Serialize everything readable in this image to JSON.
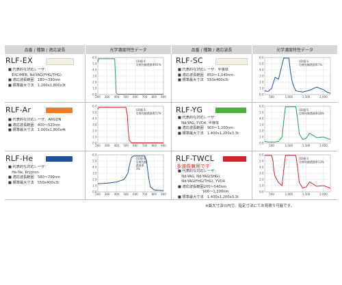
{
  "headers": {
    "left": "品番 / 種類 / 適応波長",
    "chart": "光学濃度特性データ",
    "right": "品番 / 種類 / 適応波長",
    "chart2": "光学濃度特性データ"
  },
  "products": [
    {
      "name": "RLF-EX",
      "swatch_color": "#f2f0e2",
      "lines": [
        "■ 代表的な対応レーザ：",
        "　EXCIMER, Nd-YAG(FHG/THG)",
        "■ 適応波長範囲　180〜390nm",
        "■ 標準最大寸法　1,200x1,800x3t"
      ]
    },
    {
      "name": "RLF-SC",
      "swatch_color": "#f2f0e2",
      "lines": [
        "■ 代表的な対応レーザ：半導体",
        "■ 適応波長範囲　850〜1,040nm",
        "■ 標準最大寸法　550x400x3t"
      ]
    },
    {
      "name": "RLF-Ar",
      "swatch_color": "#f07c1e",
      "lines": [
        "■ 代表的な対応レーザ：ARGON",
        "■ 適応波長範囲　400〜520nm",
        "■ 標準最大寸法　1,000x1,800x4t"
      ]
    },
    {
      "name": "RLF-YG",
      "swatch_color": "#4caf3c",
      "lines": [
        "■ 代表的な対応レーザ：",
        "　Nd-YAG, YVO4, 半導体",
        "■ 適応波長範囲　900〜1,200nm",
        "■ 標準最大寸法　1,400x1,200x3.3t"
      ]
    },
    {
      "name": "RLF-He",
      "swatch_color": "#1f4e9c",
      "lines": [
        "■ 代表的な対応レーザ：",
        "　He-Ne, Krypton",
        "■ 適応波長範囲　580〜700nm",
        "■ 標準最大寸法　550x400x3t"
      ]
    },
    {
      "name": "RLF-TWCL",
      "swatch_color": "#d6202a",
      "subtitle": "多波長兼用です",
      "lines": [
        "■ 代表的な対応レーザ：",
        "　Nd-YAG, Nd-YAG(SHG),",
        "　Nd-YAG(FHG/THG), YVO4",
        "■ 適応波長範囲200〜540nm",
        "　　　　　　　900〜1,200nm",
        "■ 標準最大寸法　1,400x1,200x3.3t"
      ]
    }
  ],
  "chart_data": [
    {
      "type": "line",
      "product": "RLF-EX",
      "color": "#1e9c5a",
      "xlim": [
        200,
        900
      ],
      "ylim": [
        0,
        6
      ],
      "xticks": [
        "200",
        "300",
        "400",
        "500",
        "600",
        "700",
        "800",
        "900"
      ],
      "yticks": [
        "0.0",
        "1.0",
        "2.0",
        "3.0",
        "4.0",
        "5.0",
        "6.0"
      ],
      "annotation": [
        "OD値 6",
        "可視光線透過率91%"
      ],
      "x": [
        200,
        210,
        380,
        388,
        395,
        410,
        900
      ],
      "y": [
        5.2,
        5.8,
        5.8,
        3.0,
        0.3,
        0.05,
        0.05
      ]
    },
    {
      "type": "line",
      "product": "RLF-SC",
      "color": "#1f4e9c",
      "xlim": [
        300,
        2200
      ],
      "ylim": [
        0,
        6
      ],
      "xticks": [
        "500",
        "1,000",
        "1,500",
        "2,000"
      ],
      "yticks": [
        "0.0",
        "1.0",
        "2.0",
        "3.0",
        "4.0",
        "5.0",
        "6.0"
      ],
      "annotation": [
        "OD値 6",
        "可視光線透過率7%"
      ],
      "x": [
        300,
        400,
        500,
        600,
        700,
        800,
        850,
        900,
        950,
        1000,
        1050,
        1100,
        1150,
        1200,
        1400,
        1600,
        1800,
        1900,
        2000,
        2100,
        2200
      ],
      "y": [
        0.6,
        0.5,
        1.0,
        2.8,
        2.5,
        4.8,
        5.9,
        5.9,
        5.9,
        5.9,
        3.5,
        2.0,
        1.2,
        0.6,
        0.4,
        0.7,
        1.2,
        1.0,
        0.8,
        0.4,
        0.2
      ]
    },
    {
      "type": "line",
      "product": "RLF-Ar",
      "color": "#d6202a",
      "xlim": [
        200,
        900
      ],
      "ylim": [
        0,
        6
      ],
      "xticks": [
        "200",
        "300",
        "400",
        "500",
        "600",
        "700",
        "800",
        "900"
      ],
      "yticks": [
        "0.0",
        "1.0",
        "2.0",
        "3.0",
        "4.0",
        "5.0",
        "6.0"
      ],
      "annotation": [
        "OD値 6",
        "可視光線透過率57%"
      ],
      "x": [
        200,
        210,
        500,
        515,
        525,
        535,
        560,
        900
      ],
      "y": [
        5.5,
        5.8,
        5.8,
        4.5,
        2.0,
        0.5,
        0.05,
        0.05
      ]
    },
    {
      "type": "line",
      "product": "RLF-YG",
      "color": "#1e9c5a",
      "xlim": [
        300,
        2200
      ],
      "ylim": [
        0,
        6
      ],
      "xticks": [
        "500",
        "1,000",
        "1,500",
        "2,000"
      ],
      "yticks": [
        "0.0",
        "1.0",
        "2.0",
        "3.0",
        "4.0",
        "5.0",
        "6.0"
      ],
      "annotation": [
        "OD値 6",
        "可視光線透過率38%"
      ],
      "x": [
        300,
        400,
        500,
        600,
        700,
        800,
        850,
        900,
        950,
        1000,
        1100,
        1200,
        1250,
        1300,
        1400,
        1500,
        1600,
        1800,
        2000,
        2100,
        2200
      ],
      "y": [
        0.3,
        0.2,
        0.2,
        0.2,
        0.3,
        1.0,
        3.5,
        5.9,
        5.9,
        5.9,
        5.9,
        5.9,
        4.0,
        1.5,
        0.6,
        0.8,
        1.6,
        0.9,
        1.0,
        0.8,
        0.6
      ]
    },
    {
      "type": "line",
      "product": "RLF-He",
      "color": "#1f4e9c",
      "xlim": [
        200,
        900
      ],
      "ylim": [
        0,
        6
      ],
      "xticks": [
        "200",
        "300",
        "400",
        "500",
        "600",
        "700",
        "800",
        "900"
      ],
      "yticks": [
        "0.0",
        "1.0",
        "2.0",
        "3.0",
        "4.0",
        "5.0",
        "6.0"
      ],
      "annotation": [
        "OD値 6",
        "可視光線",
        "透過率",
        "3%"
      ],
      "x": [
        200,
        300,
        400,
        480,
        520,
        540,
        560,
        580,
        700,
        720,
        740,
        760,
        800,
        900
      ],
      "y": [
        1.3,
        1.4,
        1.6,
        2.0,
        3.0,
        4.5,
        5.6,
        5.8,
        5.8,
        5.0,
        2.5,
        0.8,
        0.3,
        0.2
      ]
    },
    {
      "type": "line",
      "product": "RLF-TWCL",
      "color": "#d6202a",
      "xlim": [
        300,
        2200
      ],
      "ylim": [
        0,
        6
      ],
      "xticks": [
        "500",
        "1,000",
        "1,500",
        "2,000"
      ],
      "yticks": [
        "0.0",
        "1.0",
        "2.0",
        "3.0",
        "4.0",
        "5.0",
        "6.0"
      ],
      "annotation": [
        "OD値 6",
        "可視光線透過率13%"
      ],
      "x": [
        300,
        400,
        500,
        540,
        560,
        600,
        700,
        800,
        850,
        900,
        950,
        1000,
        1100,
        1200,
        1250,
        1300,
        1400,
        1500,
        1600,
        1800,
        2000,
        2100,
        2200
      ],
      "y": [
        5.9,
        5.9,
        5.9,
        5.0,
        3.5,
        2.5,
        1.5,
        1.0,
        3.5,
        5.9,
        5.9,
        5.9,
        5.9,
        5.9,
        4.0,
        1.5,
        0.6,
        0.8,
        1.6,
        0.9,
        1.0,
        0.8,
        0.6
      ]
    }
  ],
  "footnote": "※最大寸法以内で、指定寸法にてお見積り可能です。"
}
